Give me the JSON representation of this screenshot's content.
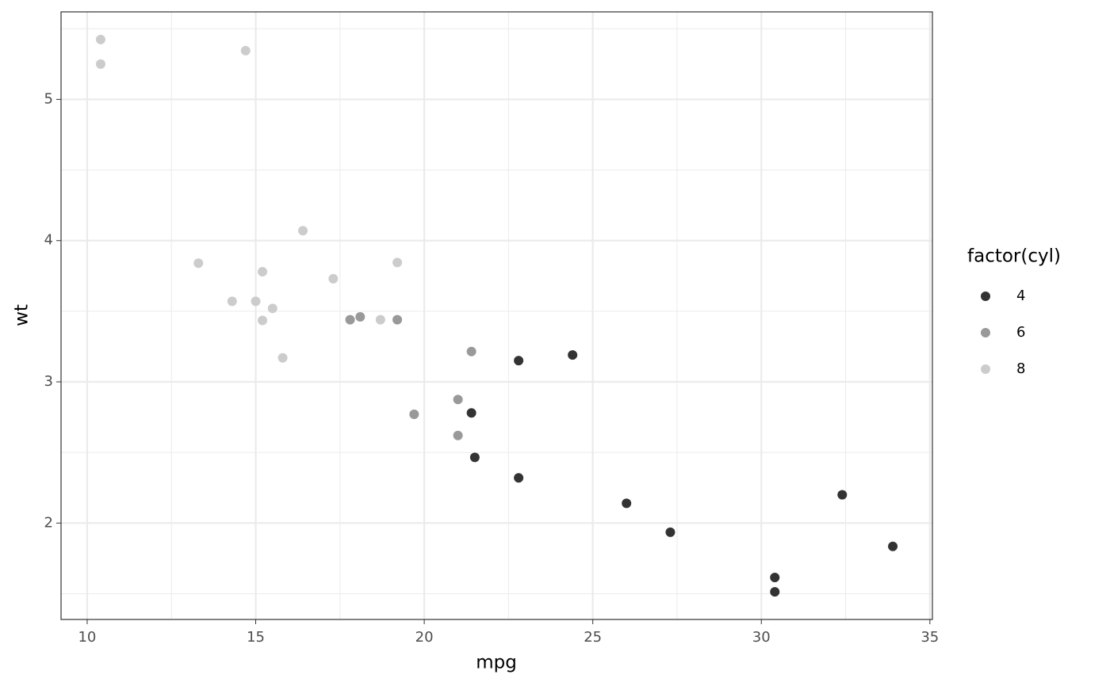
{
  "chart_data": {
    "type": "scatter",
    "x_label": "mpg",
    "y_label": "wt",
    "legend_title": "factor(cyl)",
    "legend_position": "right",
    "xlim": [
      9.225,
      35.075
    ],
    "ylim": [
      1.3175,
      5.6195
    ],
    "xticks": [
      10,
      15,
      20,
      25,
      30,
      35
    ],
    "yticks": [
      2,
      3,
      4,
      5
    ],
    "x_minor_ticks": [
      12.5,
      17.5,
      22.5,
      27.5,
      32.5
    ],
    "y_minor_ticks": [
      1.5,
      2.5,
      3.5,
      4.5,
      5.5
    ],
    "grid": true,
    "series": [
      {
        "name": "4",
        "color": "#333333",
        "x": [
          22.8,
          24.4,
          22.8,
          32.4,
          30.4,
          33.9,
          21.5,
          27.3,
          26.0,
          30.4,
          21.4
        ],
        "values": [
          2.32,
          3.19,
          3.15,
          2.2,
          1.615,
          1.835,
          2.465,
          1.935,
          2.14,
          1.513,
          2.78
        ]
      },
      {
        "name": "6",
        "color": "#999999",
        "x": [
          21.0,
          21.0,
          21.4,
          18.1,
          19.2,
          17.8,
          19.7
        ],
        "values": [
          2.62,
          2.875,
          3.215,
          3.46,
          3.44,
          3.44,
          2.77
        ]
      },
      {
        "name": "8",
        "color": "#cccccc",
        "x": [
          18.7,
          14.3,
          16.4,
          17.3,
          15.2,
          10.4,
          10.4,
          14.7,
          15.5,
          15.2,
          13.3,
          19.2,
          15.8,
          15.0
        ],
        "values": [
          3.44,
          3.57,
          4.07,
          3.73,
          3.78,
          5.25,
          5.424,
          5.345,
          3.52,
          3.435,
          3.84,
          3.845,
          3.17,
          3.57
        ]
      }
    ]
  }
}
